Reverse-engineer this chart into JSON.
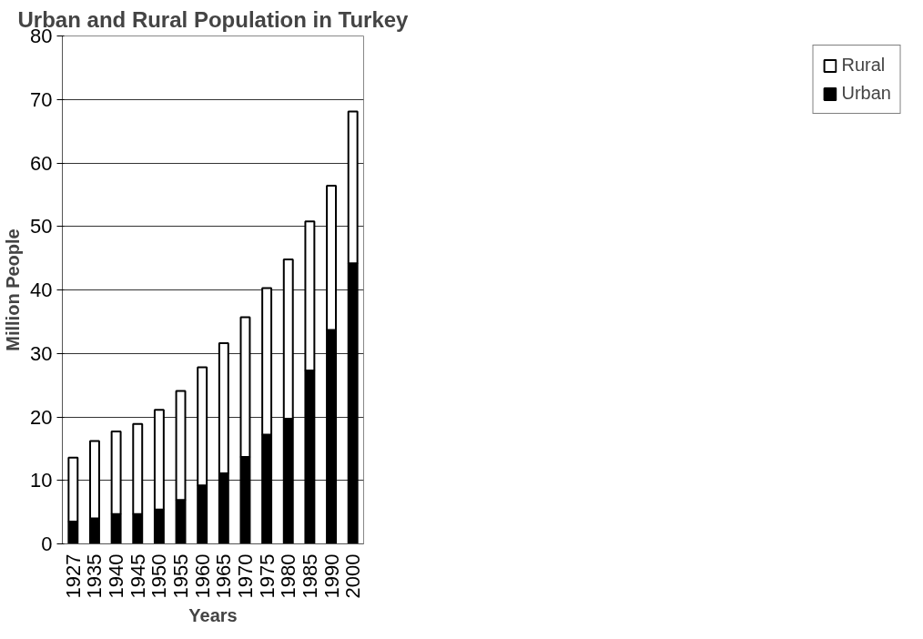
{
  "chart_data": {
    "type": "bar",
    "title": "Urban and Rural Population in Turkey",
    "xlabel": "Years",
    "ylabel": "Million People",
    "categories": [
      "1927",
      "1935",
      "1940",
      "1945",
      "1950",
      "1955",
      "1960",
      "1965",
      "1970",
      "1975",
      "1980",
      "1985",
      "1990",
      "2000"
    ],
    "stacked": true,
    "series": [
      {
        "name": "Urban",
        "color": "#000000",
        "values": [
          3.5,
          4.0,
          4.7,
          4.7,
          5.4,
          6.9,
          9.2,
          11.1,
          13.7,
          17.2,
          19.7,
          27.3,
          33.7,
          44.2
        ]
      },
      {
        "name": "Rural",
        "color": "#ffffff",
        "values": [
          10.1,
          12.2,
          13.0,
          14.2,
          15.7,
          17.2,
          18.6,
          20.5,
          22.0,
          23.1,
          25.1,
          23.5,
          22.7,
          23.9
        ]
      }
    ],
    "ylim": [
      0,
      80
    ],
    "yticks": [
      0,
      10,
      20,
      30,
      40,
      50,
      60,
      70,
      80
    ],
    "grid": "y",
    "legend": "right"
  }
}
